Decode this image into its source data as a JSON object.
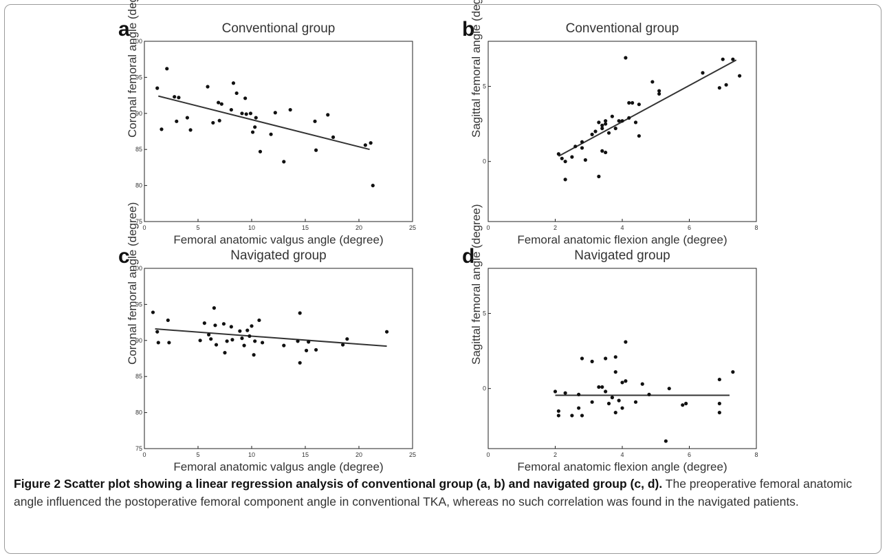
{
  "figure": {
    "caption_title": "Figure 2 Scatter plot showing a linear regression analysis of conventional group (a, b) and navigated group (c, d).",
    "caption_text": "The preoperative femoral anatomic angle influenced the postoperative femoral component angle in conventional TKA, whereas no such correlation was found in the navigated patients."
  },
  "chart_data": [
    {
      "type": "scatter",
      "panel": "a",
      "title": "Conventional group",
      "xlabel": "Femoral anatomic valgus angle (degree)",
      "ylabel": "Coronal femoral angle (degree)",
      "xlim": [
        0,
        25
      ],
      "ylim": [
        75,
        100
      ],
      "xticks": [
        0,
        5,
        10,
        15,
        20,
        25
      ],
      "yticks": [
        75,
        80,
        85,
        90,
        95,
        100
      ],
      "points": [
        [
          1.2,
          93.5
        ],
        [
          1.6,
          87.8
        ],
        [
          2.1,
          96.2
        ],
        [
          2.8,
          92.3
        ],
        [
          3.0,
          88.9
        ],
        [
          3.2,
          92.2
        ],
        [
          4.0,
          89.4
        ],
        [
          4.3,
          87.7
        ],
        [
          5.9,
          93.7
        ],
        [
          6.4,
          88.7
        ],
        [
          6.9,
          91.5
        ],
        [
          7.0,
          89.0
        ],
        [
          7.2,
          91.3
        ],
        [
          8.1,
          90.5
        ],
        [
          8.3,
          94.2
        ],
        [
          8.6,
          92.8
        ],
        [
          9.1,
          90.0
        ],
        [
          9.4,
          92.1
        ],
        [
          9.5,
          89.9
        ],
        [
          9.9,
          90.0
        ],
        [
          10.1,
          87.4
        ],
        [
          10.3,
          88.1
        ],
        [
          10.4,
          89.4
        ],
        [
          10.8,
          84.7
        ],
        [
          11.8,
          87.1
        ],
        [
          12.2,
          90.1
        ],
        [
          13.0,
          83.3
        ],
        [
          13.6,
          90.5
        ],
        [
          15.9,
          88.9
        ],
        [
          16.0,
          84.9
        ],
        [
          17.1,
          89.8
        ],
        [
          17.6,
          86.7
        ],
        [
          20.6,
          85.6
        ],
        [
          21.1,
          85.9
        ],
        [
          21.3,
          80.0
        ]
      ],
      "regression": [
        [
          1.3,
          92.4
        ],
        [
          21.0,
          85.0
        ]
      ]
    },
    {
      "type": "scatter",
      "panel": "b",
      "title": "Conventional group",
      "xlabel": "Femoral anatomic flexion angle (degree)",
      "ylabel": "Sagittal femoral angle (degree)",
      "xlim": [
        0,
        8
      ],
      "ylim": [
        -4,
        8
      ],
      "xticks": [
        0,
        2,
        4,
        6,
        8
      ],
      "yticks": [
        0,
        5
      ],
      "points": [
        [
          2.1,
          0.5
        ],
        [
          2.2,
          0.2
        ],
        [
          2.3,
          -1.2
        ],
        [
          2.3,
          0.0
        ],
        [
          2.5,
          0.3
        ],
        [
          2.6,
          1.0
        ],
        [
          2.8,
          1.3
        ],
        [
          2.8,
          0.9
        ],
        [
          2.9,
          0.1
        ],
        [
          3.1,
          1.8
        ],
        [
          3.2,
          2.0
        ],
        [
          3.3,
          2.6
        ],
        [
          3.3,
          -1.0
        ],
        [
          3.4,
          2.4
        ],
        [
          3.4,
          0.7
        ],
        [
          3.4,
          2.2
        ],
        [
          3.5,
          0.6
        ],
        [
          3.5,
          2.7
        ],
        [
          3.5,
          2.5
        ],
        [
          3.6,
          1.9
        ],
        [
          3.7,
          3.0
        ],
        [
          3.8,
          2.2
        ],
        [
          3.9,
          2.7
        ],
        [
          4.0,
          2.7
        ],
        [
          4.1,
          6.9
        ],
        [
          4.2,
          3.9
        ],
        [
          4.2,
          2.9
        ],
        [
          4.3,
          3.9
        ],
        [
          4.4,
          2.6
        ],
        [
          4.5,
          1.7
        ],
        [
          4.5,
          3.8
        ],
        [
          4.9,
          5.3
        ],
        [
          5.1,
          4.5
        ],
        [
          5.1,
          4.7
        ],
        [
          6.4,
          5.9
        ],
        [
          6.9,
          4.9
        ],
        [
          7.0,
          6.8
        ],
        [
          7.1,
          5.1
        ],
        [
          7.3,
          6.8
        ],
        [
          7.5,
          5.7
        ]
      ],
      "regression": [
        [
          2.1,
          0.35
        ],
        [
          7.4,
          6.75
        ]
      ]
    },
    {
      "type": "scatter",
      "panel": "c",
      "title": "Navigated group",
      "xlabel": "Femoral anatomic valgus angle (degree)",
      "ylabel": "Coronal femoral angle (degree)",
      "xlim": [
        0,
        25
      ],
      "ylim": [
        75,
        100
      ],
      "xticks": [
        0,
        5,
        10,
        15,
        20,
        25
      ],
      "yticks": [
        75,
        80,
        85,
        90,
        95,
        100
      ],
      "points": [
        [
          0.8,
          93.9
        ],
        [
          1.2,
          91.2
        ],
        [
          1.3,
          89.7
        ],
        [
          2.2,
          92.8
        ],
        [
          2.3,
          89.7
        ],
        [
          5.2,
          90.0
        ],
        [
          5.6,
          92.4
        ],
        [
          6.0,
          90.8
        ],
        [
          6.2,
          90.2
        ],
        [
          6.5,
          94.5
        ],
        [
          6.6,
          92.1
        ],
        [
          6.7,
          89.4
        ],
        [
          7.4,
          92.3
        ],
        [
          7.5,
          88.3
        ],
        [
          7.7,
          89.9
        ],
        [
          8.1,
          91.9
        ],
        [
          8.2,
          90.1
        ],
        [
          8.9,
          91.3
        ],
        [
          9.1,
          90.3
        ],
        [
          9.3,
          89.3
        ],
        [
          9.6,
          91.4
        ],
        [
          9.8,
          90.6
        ],
        [
          10.0,
          92.0
        ],
        [
          10.2,
          88.0
        ],
        [
          10.3,
          89.9
        ],
        [
          10.7,
          92.8
        ],
        [
          11.0,
          89.7
        ],
        [
          13.0,
          89.3
        ],
        [
          14.3,
          89.9
        ],
        [
          14.5,
          93.8
        ],
        [
          14.5,
          86.9
        ],
        [
          15.1,
          88.6
        ],
        [
          15.3,
          89.8
        ],
        [
          16.0,
          88.7
        ],
        [
          18.5,
          89.4
        ],
        [
          18.9,
          90.2
        ],
        [
          22.6,
          91.2
        ]
      ],
      "regression": [
        [
          1.0,
          91.6
        ],
        [
          22.6,
          89.2
        ]
      ]
    },
    {
      "type": "scatter",
      "panel": "d",
      "title": "Navigated group",
      "xlabel": "Femoral anatomic flexion angle (degree)",
      "ylabel": "Sagittal femoral angle (degree)",
      "xlim": [
        0,
        8
      ],
      "ylim": [
        -4,
        8
      ],
      "xticks": [
        0,
        2,
        4,
        6,
        8
      ],
      "yticks": [
        0,
        5
      ],
      "points": [
        [
          2.0,
          -0.2
        ],
        [
          2.1,
          -1.5
        ],
        [
          2.1,
          -1.8
        ],
        [
          2.3,
          -0.3
        ],
        [
          2.5,
          -1.8
        ],
        [
          2.7,
          -0.4
        ],
        [
          2.7,
          -1.3
        ],
        [
          2.8,
          -1.8
        ],
        [
          2.8,
          2.0
        ],
        [
          3.1,
          1.8
        ],
        [
          3.1,
          -0.9
        ],
        [
          3.3,
          0.1
        ],
        [
          3.4,
          0.1
        ],
        [
          3.5,
          2.0
        ],
        [
          3.5,
          -0.2
        ],
        [
          3.6,
          -1.0
        ],
        [
          3.7,
          -0.6
        ],
        [
          3.8,
          2.1
        ],
        [
          3.8,
          -1.6
        ],
        [
          3.8,
          1.1
        ],
        [
          3.9,
          -0.8
        ],
        [
          4.0,
          0.4
        ],
        [
          4.0,
          -1.3
        ],
        [
          4.1,
          3.1
        ],
        [
          4.1,
          0.5
        ],
        [
          4.4,
          -0.9
        ],
        [
          4.6,
          0.3
        ],
        [
          4.8,
          -0.4
        ],
        [
          5.3,
          -3.5
        ],
        [
          5.4,
          0.0
        ],
        [
          5.8,
          -1.1
        ],
        [
          5.9,
          -1.0
        ],
        [
          6.9,
          0.6
        ],
        [
          6.9,
          -1.0
        ],
        [
          6.9,
          -1.6
        ],
        [
          7.3,
          1.1
        ]
      ],
      "regression": [
        [
          2.0,
          -0.45
        ],
        [
          7.2,
          -0.45
        ]
      ]
    }
  ]
}
